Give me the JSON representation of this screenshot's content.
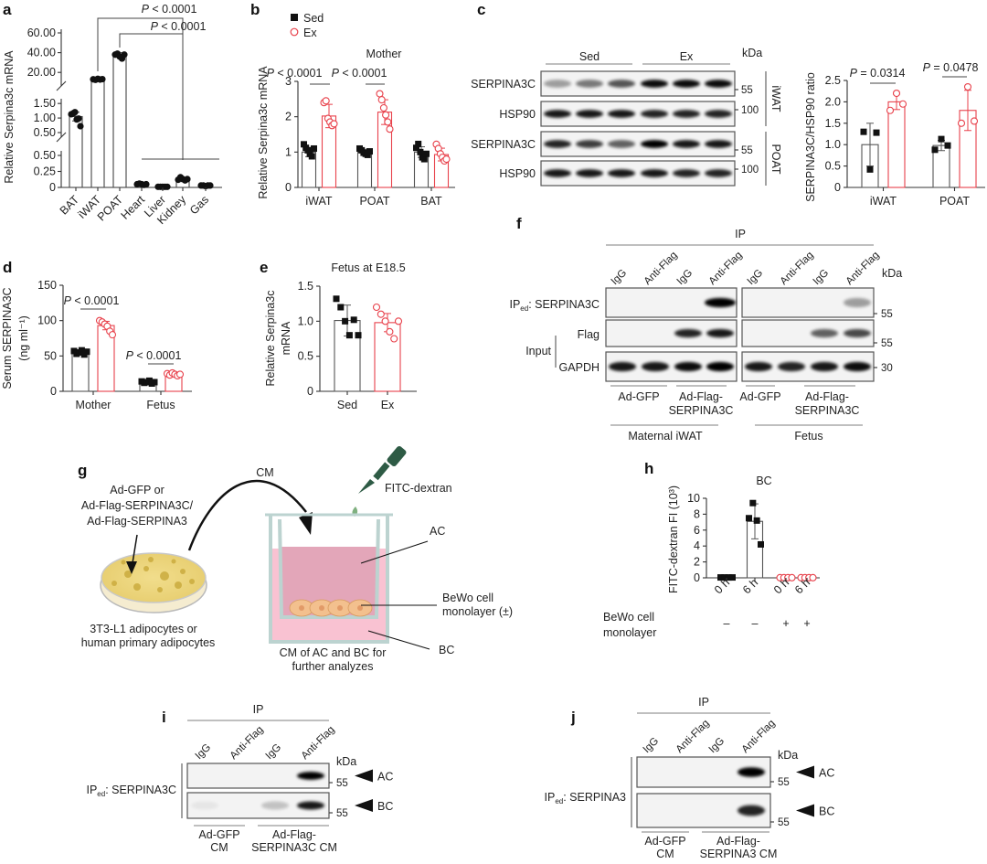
{
  "panel_labels": {
    "a": "a",
    "b": "b",
    "c": "c",
    "d": "d",
    "e": "e",
    "f": "f",
    "g": "g",
    "h": "h",
    "i": "i",
    "j": "j"
  },
  "colors": {
    "sed": "#111111",
    "ex": "#e8414b",
    "bar_sed": "#555555"
  },
  "legend_b": {
    "sed": "Sed",
    "ex": "Ex"
  },
  "chart_data": [
    {
      "id": "a",
      "type": "bar",
      "title": "",
      "ylabel": "Relative Serpina3c mRNA",
      "categories": [
        "BAT",
        "iWAT",
        "POAT",
        "Heart",
        "Liver",
        "Kidney",
        "Gas"
      ],
      "axis_segments": [
        {
          "range": [
            0,
            0.5
          ],
          "ticks": [
            0,
            0.25,
            0.5
          ],
          "tick_labels": [
            "0",
            "0.25",
            "0.50"
          ]
        },
        {
          "range": [
            0.5,
            1.6
          ],
          "ticks": [
            0.5,
            1.0,
            1.5
          ],
          "tick_labels": [
            "0.50",
            "1.00",
            "1.50"
          ]
        },
        {
          "range": [
            10,
            60
          ],
          "ticks": [
            20,
            40,
            60
          ],
          "tick_labels": [
            "20.00",
            "40.00",
            "60.00"
          ]
        }
      ],
      "bars": [
        {
          "category": "BAT",
          "series": "all",
          "mean": 1.05,
          "sd": 0.15,
          "points": [
            1.13,
            1.16,
            1.2,
            0.95,
            0.98,
            0.72
          ]
        },
        {
          "category": "iWAT",
          "series": "all",
          "mean": 13,
          "sd": 1,
          "points": [
            13,
            12.5,
            13.5,
            12.8,
            13.2
          ]
        },
        {
          "category": "POAT",
          "series": "all",
          "mean": 38,
          "sd": 2,
          "points": [
            38,
            39,
            36,
            34,
            38
          ]
        },
        {
          "category": "Heart",
          "series": "all",
          "mean": 0.05,
          "sd": 0.01,
          "points": [
            0.05,
            0.06,
            0.05,
            0.04,
            0.05
          ]
        },
        {
          "category": "Liver",
          "series": "all",
          "mean": 0.01,
          "sd": 0.005,
          "points": [
            0.01,
            0.01,
            0.01,
            0.01,
            0.01
          ]
        },
        {
          "category": "Kidney",
          "series": "all",
          "mean": 0.13,
          "sd": 0.02,
          "points": [
            0.12,
            0.16,
            0.13,
            0.11,
            0.13
          ]
        },
        {
          "category": "Gas",
          "series": "all",
          "mean": 0.03,
          "sd": 0.005,
          "points": [
            0.03,
            0.03,
            0.02,
            0.03,
            0.03
          ]
        }
      ],
      "annotations": [
        "P < 0.0001",
        "P < 0.0001"
      ]
    },
    {
      "id": "b",
      "type": "bar",
      "title": "Mother",
      "ylabel": "Relative Serpina3c mRNA",
      "categories": [
        "iWAT",
        "POAT",
        "BAT"
      ],
      "ylim": [
        0,
        3
      ],
      "ticks": [
        0,
        1,
        2,
        3
      ],
      "tick_labels": [
        "0",
        "1",
        "2",
        "3"
      ],
      "bars": [
        {
          "category": "iWAT",
          "series": "Sed",
          "mean": 1.0,
          "sd": 0.13,
          "points": [
            1.22,
            1.12,
            1.05,
            0.95,
            0.88,
            1.1
          ]
        },
        {
          "category": "iWAT",
          "series": "Ex",
          "mean": 2.02,
          "sd": 0.33,
          "points": [
            2.4,
            2.45,
            1.95,
            1.85,
            1.75,
            1.8
          ]
        },
        {
          "category": "POAT",
          "series": "Sed",
          "mean": 1.0,
          "sd": 0.08,
          "points": [
            1.1,
            1.05,
            0.98,
            0.95,
            0.92,
            1.02
          ]
        },
        {
          "category": "POAT",
          "series": "Ex",
          "mean": 2.13,
          "sd": 0.35,
          "points": [
            2.65,
            2.48,
            2.25,
            2.05,
            1.85,
            1.65
          ]
        },
        {
          "category": "BAT",
          "series": "Sed",
          "mean": 1.0,
          "sd": 0.15,
          "points": [
            1.12,
            1.23,
            1.0,
            0.85,
            0.8,
            0.95
          ]
        },
        {
          "category": "BAT",
          "series": "Ex",
          "mean": 0.93,
          "sd": 0.18,
          "points": [
            1.22,
            1.1,
            0.95,
            0.85,
            0.75,
            0.8
          ]
        }
      ],
      "annotations": [
        "P < 0.0001",
        "P < 0.0001"
      ]
    },
    {
      "id": "c",
      "type": "bar",
      "title": "",
      "ylabel": "SERPINA3C/HSP90 ratio",
      "categories": [
        "iWAT",
        "POAT"
      ],
      "ylim": [
        0,
        2.5
      ],
      "ticks": [
        0,
        0.5,
        1.0,
        1.5,
        2.0,
        2.5
      ],
      "tick_labels": [
        "0",
        "0.5",
        "1.0",
        "1.5",
        "2.0",
        "2.5"
      ],
      "bars": [
        {
          "category": "iWAT",
          "series": "Sed",
          "mean": 1.0,
          "sd": 0.5,
          "points": [
            1.3,
            0.42,
            1.28
          ]
        },
        {
          "category": "iWAT",
          "series": "Ex",
          "mean": 2.0,
          "sd": 0.18,
          "points": [
            1.8,
            2.2,
            1.95
          ]
        },
        {
          "category": "POAT",
          "series": "Sed",
          "mean": 0.98,
          "sd": 0.12,
          "points": [
            0.88,
            1.13,
            0.98
          ]
        },
        {
          "category": "POAT",
          "series": "Ex",
          "mean": 1.8,
          "sd": 0.47,
          "points": [
            1.5,
            2.35,
            1.55
          ]
        }
      ],
      "annotations": [
        "P = 0.0314",
        "P = 0.0478"
      ]
    },
    {
      "id": "d",
      "type": "bar",
      "title": "",
      "ylabel": "Serum SERPINA3C",
      "ylabel2": "(ng ml⁻¹)",
      "categories": [
        "Mother",
        "Fetus"
      ],
      "ylim": [
        0,
        150
      ],
      "ticks": [
        0,
        50,
        100,
        150
      ],
      "tick_labels": [
        "0",
        "50",
        "100",
        "150"
      ],
      "bars": [
        {
          "category": "Mother",
          "series": "Sed",
          "mean": 55,
          "sd": 3,
          "points": [
            57,
            53,
            55,
            58,
            52,
            56
          ]
        },
        {
          "category": "Mother",
          "series": "Ex",
          "mean": 93,
          "sd": 6,
          "points": [
            100,
            98,
            95,
            92,
            85,
            80
          ]
        },
        {
          "category": "Fetus",
          "series": "Sed",
          "mean": 13,
          "sd": 2,
          "points": [
            14,
            12,
            13,
            15,
            11,
            13
          ]
        },
        {
          "category": "Fetus",
          "series": "Ex",
          "mean": 24,
          "sd": 2,
          "points": [
            25,
            23,
            26,
            24,
            22,
            24
          ]
        }
      ],
      "annotations": [
        "P < 0.0001",
        "P < 0.0001"
      ]
    },
    {
      "id": "e",
      "type": "bar",
      "title": "Fetus at E18.5",
      "ylabel": "Relative Serpina3c",
      "ylabel2": "mRNA",
      "categories": [
        "Sed",
        "Ex"
      ],
      "ylim": [
        0,
        1.5
      ],
      "ticks": [
        0,
        0.5,
        1.0,
        1.5
      ],
      "tick_labels": [
        "0",
        "0.5",
        "1.0",
        "1.5"
      ],
      "bars": [
        {
          "category": "Sed",
          "series": "Sed",
          "mean": 1.01,
          "sd": 0.22,
          "points": [
            1.32,
            1.2,
            1.0,
            0.8,
            1.02,
            0.8
          ]
        },
        {
          "category": "Ex",
          "series": "Ex",
          "mean": 0.98,
          "sd": 0.13,
          "points": [
            1.2,
            1.1,
            1.0,
            0.85,
            0.75,
            1.0
          ]
        }
      ],
      "annotations": []
    },
    {
      "id": "h",
      "type": "bar",
      "title": "BC",
      "ylabel": "FITC-dextran FI (10³)",
      "categories": [
        "0 h",
        "6 h",
        "0 h",
        "6 h"
      ],
      "ylim": [
        0,
        10
      ],
      "ticks": [
        0,
        2,
        4,
        6,
        8,
        10
      ],
      "tick_labels": [
        "0",
        "2",
        "4",
        "6",
        "8",
        "10"
      ],
      "row_label": "BeWo cell monolayer",
      "row_values": [
        "–",
        "–",
        "+",
        "+"
      ],
      "bars": [
        {
          "category": "0 h",
          "series": "Sed",
          "mean": 0.05,
          "sd": 0,
          "points": [
            0.05,
            0.05,
            0.05,
            0.05
          ]
        },
        {
          "category": "6 h",
          "series": "Sed",
          "mean": 7.1,
          "sd": 2.2,
          "points": [
            7.5,
            9.4,
            7.2,
            4.2
          ]
        },
        {
          "category": "0 h",
          "series": "Ex",
          "mean": 0.02,
          "sd": 0,
          "points": [
            0.02,
            0.02,
            0.02,
            0.02
          ]
        },
        {
          "category": "6 h",
          "series": "Ex",
          "mean": 0.02,
          "sd": 0,
          "points": [
            0.02,
            0.02,
            0.02,
            0.02
          ]
        }
      ],
      "annotations": []
    }
  ],
  "blot_c": {
    "groups": [
      "Sed",
      "Ex"
    ],
    "rows": [
      "SERPINA3C",
      "HSP90",
      "SERPINA3C",
      "HSP90"
    ],
    "kda_label": "kDa",
    "kda": [
      "55",
      "100",
      "55",
      "100"
    ],
    "tissues": [
      "iWAT",
      "POAT"
    ]
  },
  "blot_f": {
    "ip": "IP",
    "lanes": [
      "IgG",
      "Anti-Flag",
      "IgG",
      "Anti-Flag",
      "IgG",
      "Anti-Flag",
      "IgG",
      "Anti-Flag"
    ],
    "row_ip": "IP",
    "row_ip_sub": "ed",
    "row_ip_rest": ": SERPINA3C",
    "row_flag": "Flag",
    "row_input": "Input",
    "row_gapdh": "GAPDH",
    "kda_label": "kDa",
    "kda": [
      "55",
      "55",
      "30"
    ],
    "groups": [
      {
        "l1": "Ad-GFP",
        "l2": ""
      },
      {
        "l1": "Ad-Flag-",
        "l2": "SERPINA3C"
      },
      {
        "l1": "Ad-GFP",
        "l2": ""
      },
      {
        "l1": "Ad-Flag-",
        "l2": "SERPINA3C"
      }
    ],
    "sources": [
      "Maternal iWAT",
      "Fetus"
    ]
  },
  "diagram_g": {
    "virus1": "Ad-GFP or",
    "virus2": "Ad-Flag-SERPINA3C/",
    "virus3": "Ad-Flag-SERPINA3",
    "cells1": "3T3-L1 adipocytes or",
    "cells2": "human primary adipocytes",
    "cm": "CM",
    "tracer": "FITC-dextran",
    "ac": "AC",
    "bewo1": "BeWo cell",
    "bewo2": "monolayer (±)",
    "bc": "BC",
    "collect1": "CM of AC and BC for",
    "collect2": "further analyzes"
  },
  "blot_i": {
    "ip": "IP",
    "lanes": [
      "IgG",
      "Anti-Flag",
      "IgG",
      "Anti-Flag"
    ],
    "row": "IP",
    "row_sub": "ed",
    "row_rest": ": SERPINA3C",
    "kda_label": "kDa",
    "kda": [
      "55",
      "55"
    ],
    "markers": [
      "AC",
      "BC"
    ],
    "groups": [
      {
        "l1": "Ad-GFP",
        "l2": "CM"
      },
      {
        "l1": "Ad-Flag-",
        "l2": "SERPINA3C CM"
      }
    ]
  },
  "blot_j": {
    "ip": "IP",
    "lanes": [
      "IgG",
      "Anti-Flag",
      "IgG",
      "Anti-Flag"
    ],
    "row": "IP",
    "row_sub": "ed",
    "row_rest": ": SERPINA3",
    "kda_label": "kDa",
    "kda": [
      "55",
      "55"
    ],
    "markers": [
      "AC",
      "BC"
    ],
    "groups": [
      {
        "l1": "Ad-GFP",
        "l2": "CM"
      },
      {
        "l1": "Ad-Flag-",
        "l2": "SERPINA3 CM"
      }
    ]
  }
}
